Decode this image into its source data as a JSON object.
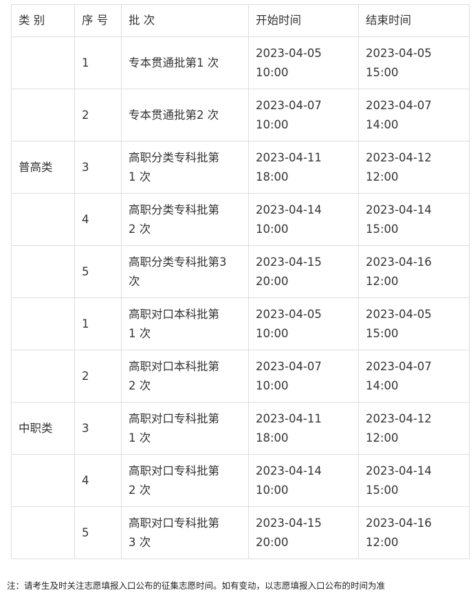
{
  "headers": [
    "类 别",
    "序 号",
    "批  次",
    "开始时间",
    "结束时间"
  ],
  "rows": [
    {
      "category": "",
      "no": "1",
      "batch": "专本贯通批第1 次",
      "start": "2023-04-05\n10:00",
      "end": "2023-04-05\n15:00"
    },
    {
      "category": "",
      "no": "2",
      "batch": "专本贯通批第2 次",
      "start": "2023-04-07\n10:00",
      "end": "2023-04-07\n14:00"
    },
    {
      "category": "普高类",
      "no": "3",
      "batch": "高职分类专科批第\n1 次",
      "start": "2023-04-11\n18:00",
      "end": "2023-04-12\n12:00"
    },
    {
      "category": "",
      "no": "4",
      "batch": "高职分类专科批第\n2 次",
      "start": "2023-04-14\n10:00",
      "end": "2023-04-14\n15:00"
    },
    {
      "category": "",
      "no": "5",
      "batch": "高职分类专科批第3\n次",
      "start": "2023-04-15\n20:00",
      "end": "2023-04-16\n12:00"
    },
    {
      "category": "",
      "no": "1",
      "batch": "高职对口本科批第\n1 次",
      "start": "2023-04-05\n10:00",
      "end": "2023-04-05\n15:00"
    },
    {
      "category": "",
      "no": "2",
      "batch": "高职对口本科批第\n2 次",
      "start": "2023-04-07\n10:00",
      "end": "2023-04-07\n14:00"
    },
    {
      "category": "中职类",
      "no": "3",
      "batch": "高职对口专科批第\n1 次",
      "start": "2023-04-11\n18:00",
      "end": "2023-04-12\n12:00"
    },
    {
      "category": "",
      "no": "4",
      "batch": "高职对口专科批第\n2 次",
      "start": "2023-04-14\n10:00",
      "end": "2023-04-14\n15:00"
    },
    {
      "category": "",
      "no": "5",
      "batch": "高职对口专科批第\n3 次",
      "start": "2023-04-15\n20:00",
      "end": "2023-04-16\n12:00"
    }
  ],
  "note": "注：请考生及时关注志愿填报入口公布的征集志愿时间。如有变动，以志愿填报入口公布的时间为准"
}
